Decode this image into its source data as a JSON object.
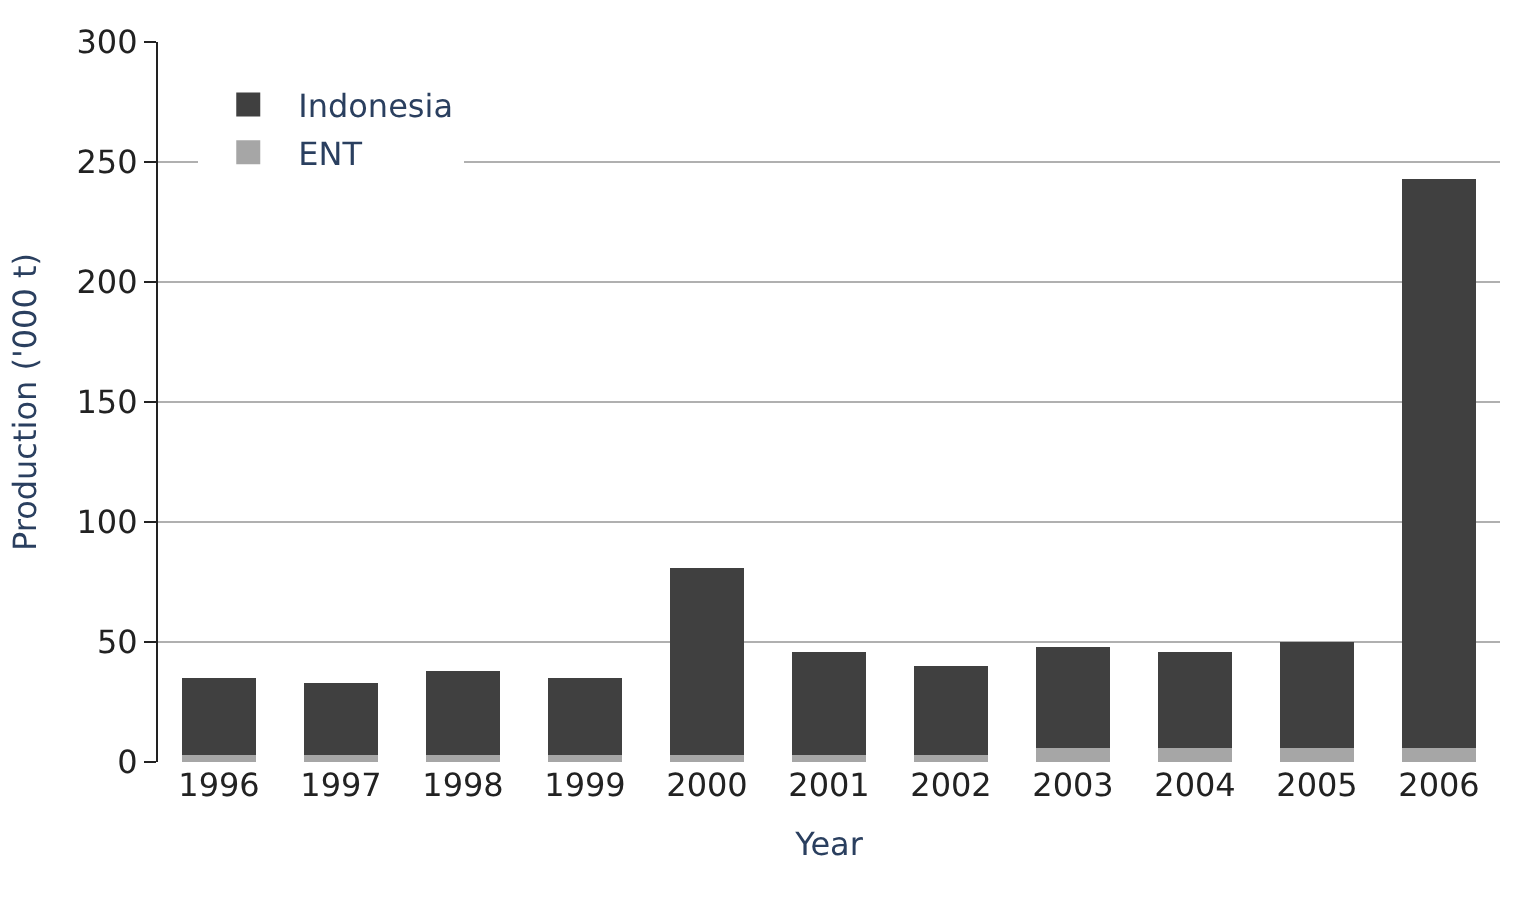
{
  "chart_data": {
    "type": "bar",
    "stacked": true,
    "xlabel": "Year",
    "ylabel": "Production ('000 t)",
    "categories": [
      "1996",
      "1997",
      "1998",
      "1999",
      "2000",
      "2001",
      "2002",
      "2003",
      "2004",
      "2005",
      "2006"
    ],
    "series": [
      {
        "name": "ENT",
        "color": "#a6a6a6",
        "values": [
          3,
          3,
          3,
          3,
          3,
          3,
          3,
          6,
          6,
          6,
          6
        ]
      },
      {
        "name": "Indonesia",
        "color": "#404040",
        "values": [
          32,
          30,
          35,
          32,
          78,
          43,
          37,
          42,
          40,
          44,
          237
        ]
      }
    ],
    "ylim": [
      0,
      300
    ],
    "yticks": [
      0,
      50,
      100,
      150,
      200,
      250,
      300
    ],
    "grid": "y",
    "legend": "top left"
  }
}
